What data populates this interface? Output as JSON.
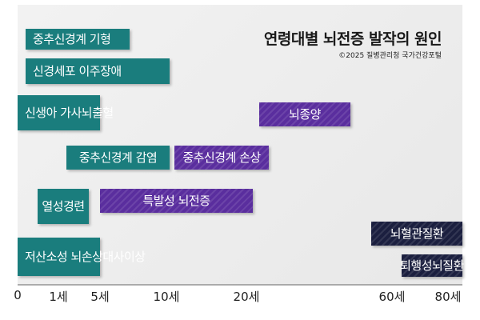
{
  "chart_data": {
    "type": "bar",
    "title": "연령대별 뇌전증 발작의 원인",
    "source": "©2025 질병관리청 국가건강포털",
    "xlabel": "",
    "ylabel": "",
    "x_ticks": [
      "0",
      "1세",
      "5세",
      "10세",
      "20세",
      "60세",
      "80세"
    ],
    "bars": [
      {
        "label": "중추신경계 기형",
        "start": "0",
        "end": "5세",
        "color": "#1a7d7d"
      },
      {
        "label": "신경세포 이주장애",
        "start": "0",
        "end": "10세",
        "color": "#1a7d7d"
      },
      {
        "label": "신생아 가사\n뇌출혈",
        "start": "0",
        "end": "5세",
        "color": "#1a7d7d"
      },
      {
        "label": "뇌종양",
        "start": "20세+",
        "end": "60세−",
        "color": "#5a2e9e"
      },
      {
        "label": "중추신경계 감염",
        "start": "1세+",
        "end": "10세",
        "color": "#1a7d7d"
      },
      {
        "label": "중추신경계 손상",
        "start": "10세+",
        "end": "20세+",
        "color": "#5a2e9e"
      },
      {
        "label": "열성경련",
        "start": "1세−",
        "end": "5세",
        "color": "#1a7d7d"
      },
      {
        "label": "특발성 뇌전증",
        "start": "5세",
        "end": "20세",
        "color": "#5a2e9e"
      },
      {
        "label": "뇌혈관질환",
        "start": "60세−",
        "end": "80세",
        "color": "#1b1f3f"
      },
      {
        "label": "저산소성 뇌손상\n대사이상",
        "start": "0",
        "end": "5세",
        "color": "#1a7d7d"
      },
      {
        "label": "퇴행성뇌질환",
        "start": "60세+",
        "end": "80세",
        "color": "#1b1f3f"
      }
    ]
  }
}
